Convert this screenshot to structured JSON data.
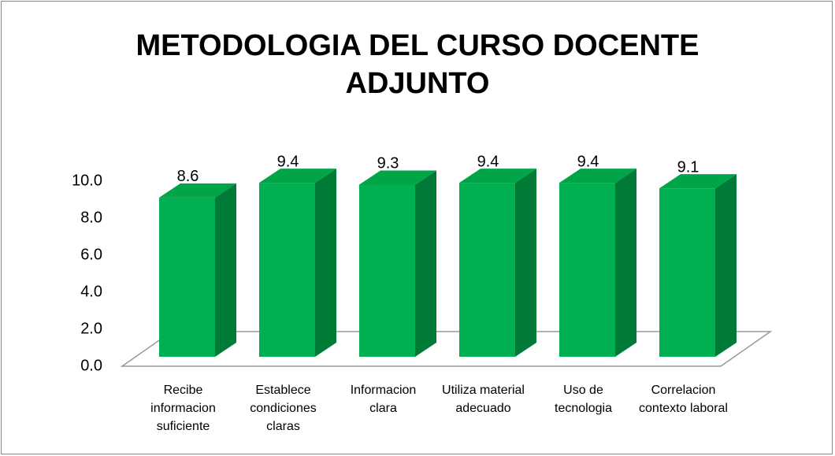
{
  "chart_data": {
    "type": "bar3d",
    "title": "METODOLOGIA DEL CURSO DOCENTE ADJUNTO",
    "categories": [
      "Recibe informacion suficiente",
      "Establece condiciones claras",
      "Informacion clara",
      "Utiliza material adecuado",
      "Uso de tecnologia",
      "Correlacion contexto laboral"
    ],
    "values": [
      8.6,
      9.4,
      9.3,
      9.4,
      9.4,
      9.1
    ],
    "color": "#00b050",
    "ylim": [
      0,
      10
    ],
    "yticks": [
      {
        "value": 0,
        "label": "0.0"
      },
      {
        "value": 2,
        "label": "2.0"
      },
      {
        "value": 4,
        "label": "4.0"
      },
      {
        "value": 6,
        "label": "6.0"
      },
      {
        "value": 8,
        "label": "8.0"
      },
      {
        "value": 10,
        "label": "10.0"
      }
    ]
  }
}
